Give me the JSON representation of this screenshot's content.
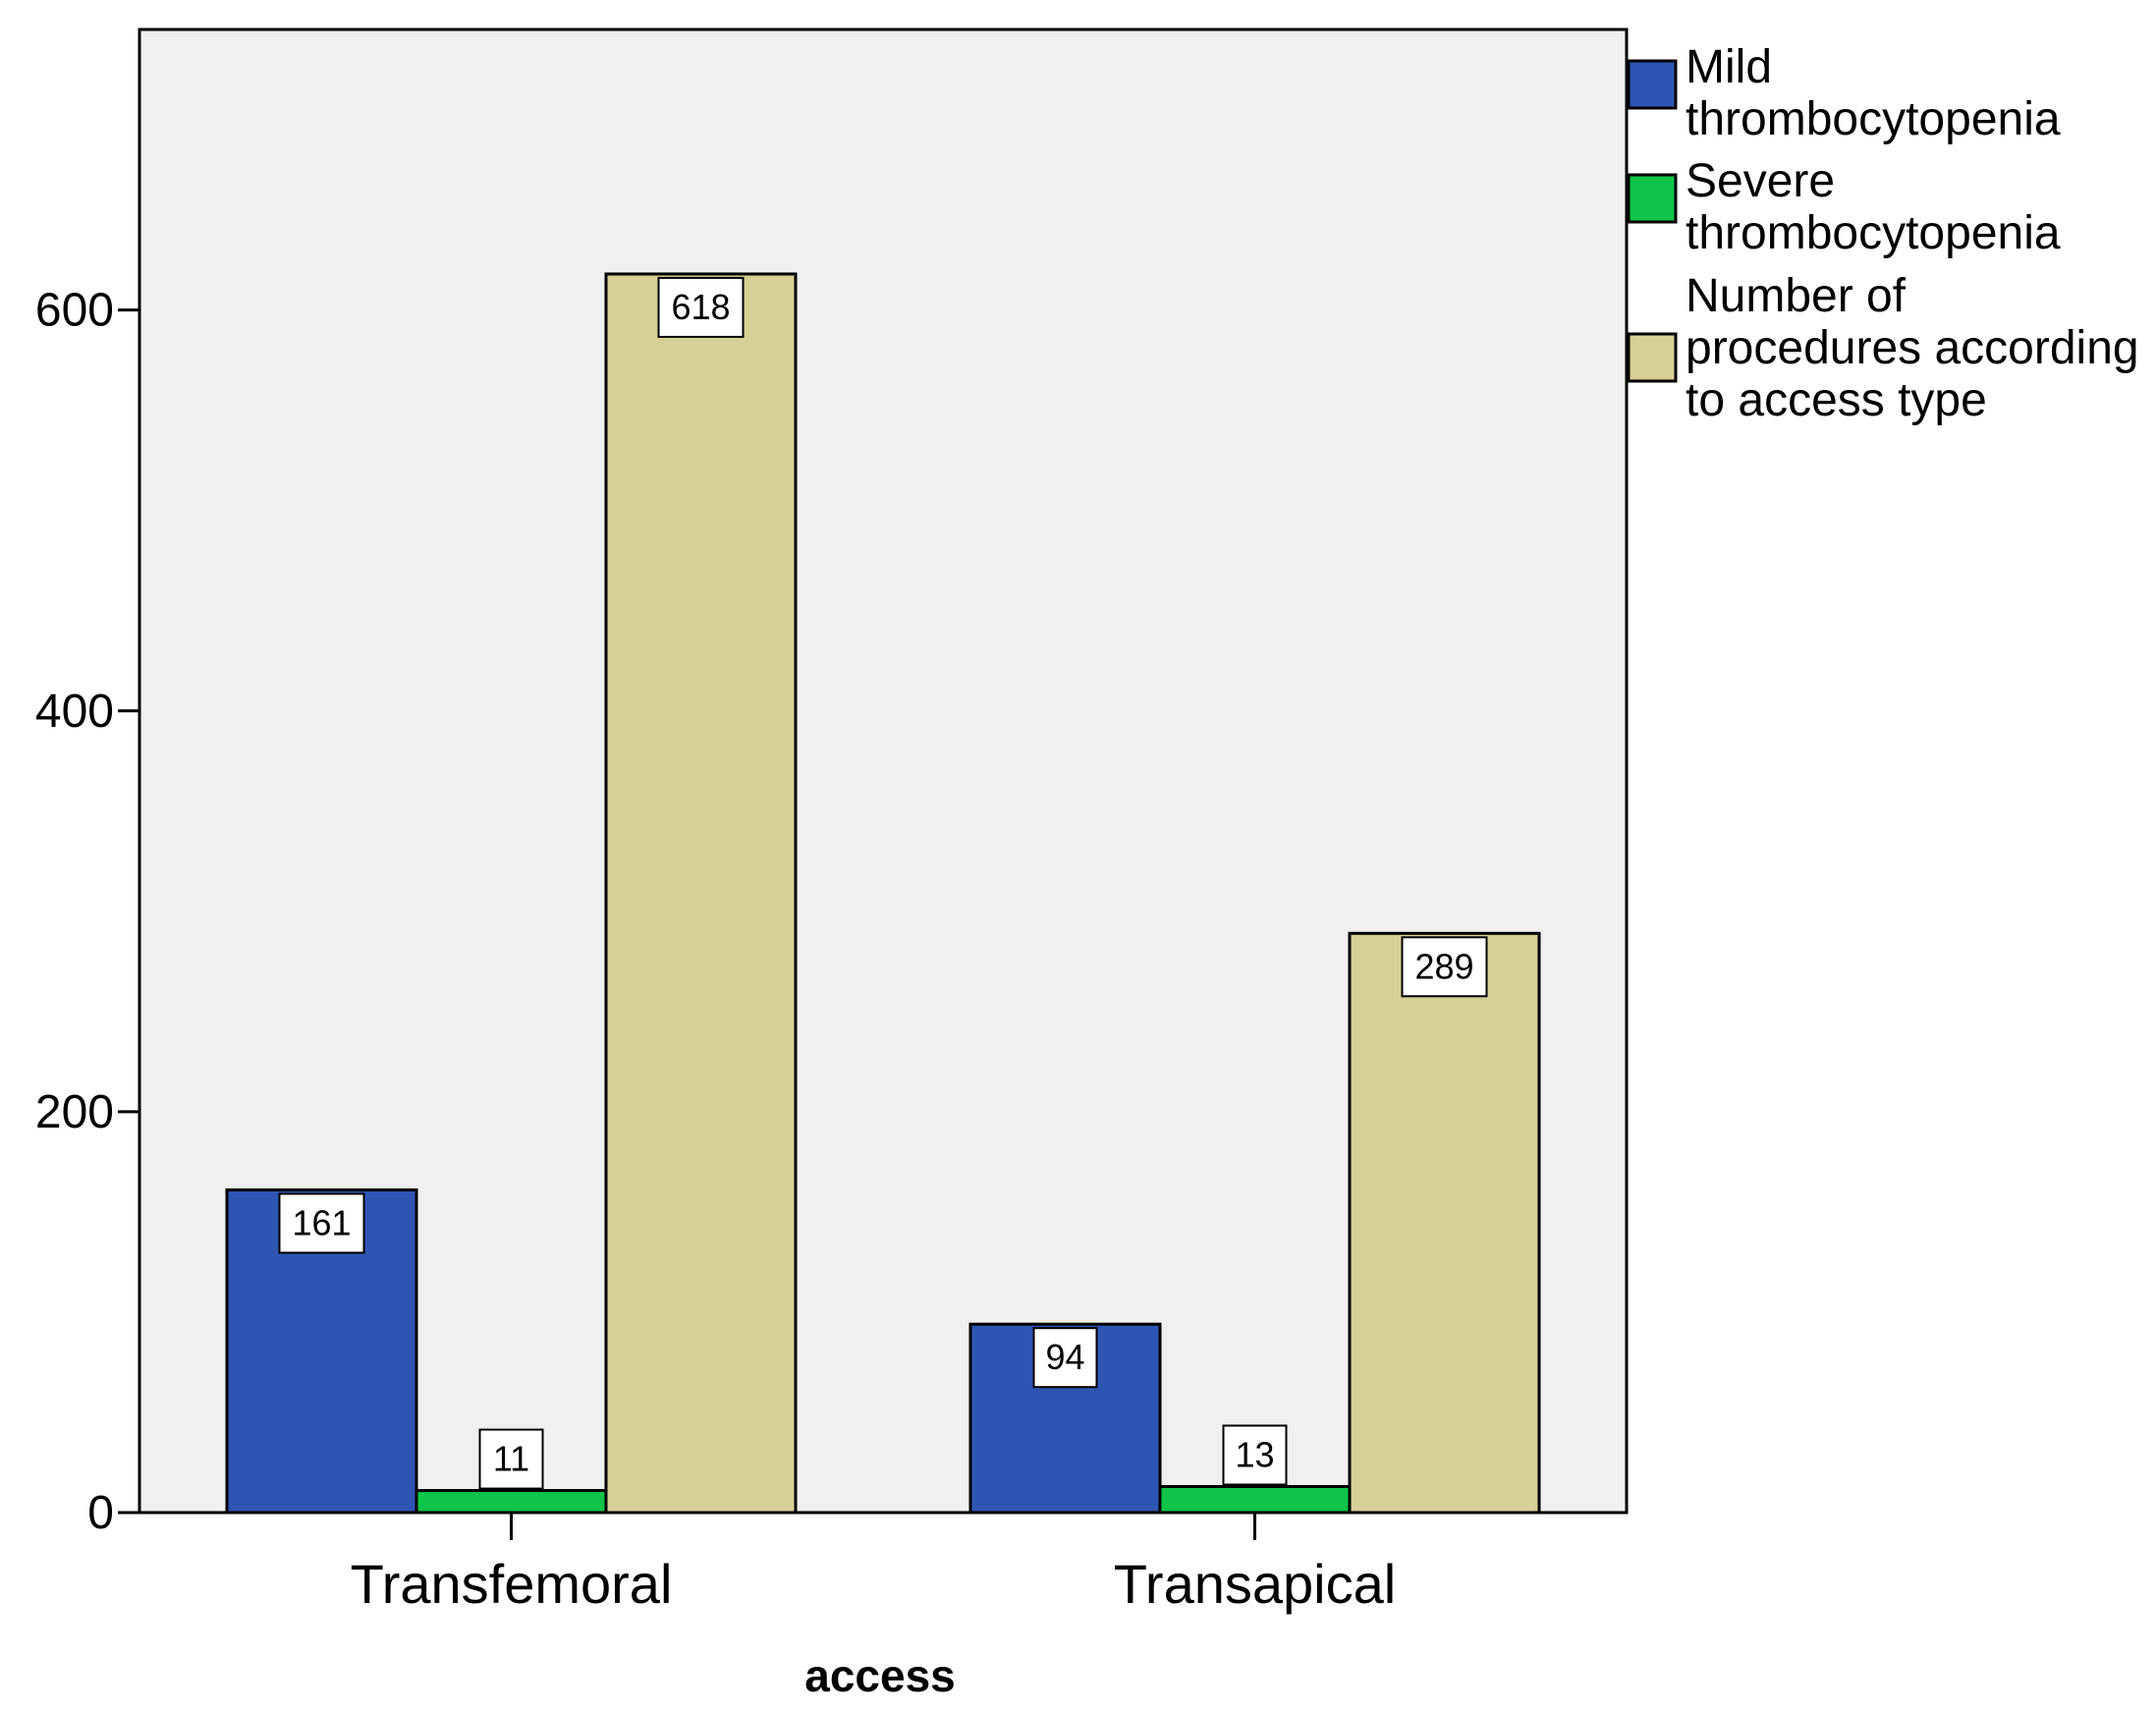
{
  "chart_data": {
    "type": "bar",
    "title": "",
    "xlabel": "access",
    "ylabel": "",
    "ylim": [
      0,
      740
    ],
    "yticks": [
      "0",
      "200",
      "400",
      "600"
    ],
    "grid": false,
    "legend_position": "right",
    "categories": [
      "Transfemoral",
      "Transapical"
    ],
    "series": [
      {
        "name": "Mild thrombocytopenia",
        "color": "#2f55b3",
        "values": [
          161,
          94
        ],
        "labels": [
          "161",
          "94"
        ]
      },
      {
        "name": "Severe thrombocytopenia",
        "color": "#0ec44a",
        "values": [
          11,
          13
        ],
        "labels": [
          "11",
          "13"
        ]
      },
      {
        "name": "Number of procedures according to access type",
        "color": "#d6d097",
        "values": [
          618,
          289
        ],
        "labels": [
          "618",
          "289"
        ]
      }
    ],
    "plot_background": "#f0f0f0"
  }
}
